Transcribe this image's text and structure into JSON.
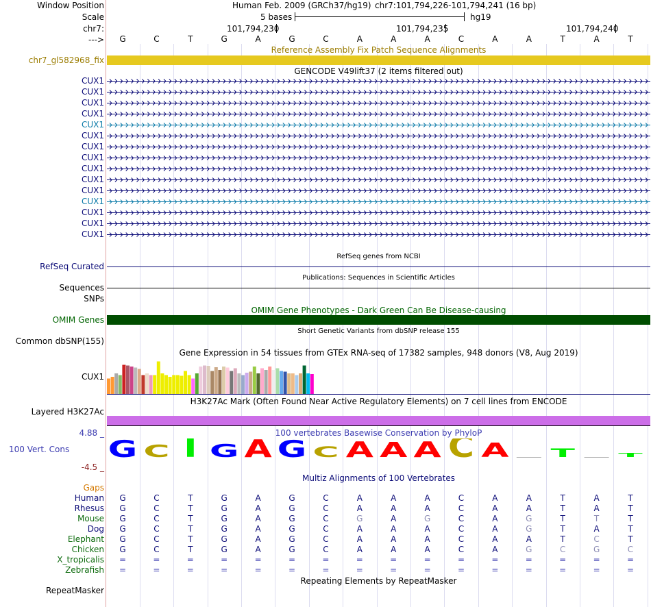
{
  "colors": {
    "blue_dark": "#0c0c78",
    "blue_teal": "#0b7aa8",
    "gold": "#e6c91f",
    "gold_label": "#9b7c00",
    "green_dark": "#004d00",
    "purple": "#cc6ee8",
    "conservation_title": "#3b3bb0",
    "conservation_label": "#3b3bb0",
    "negative_label": "#8b2020",
    "base_A": "#ff0000",
    "base_C": "#b8a200",
    "base_G": "#0000ff",
    "base_T": "#00ee00",
    "grid": "#dcdcf0",
    "red_gutter": "#e0a0a0"
  },
  "header": {
    "window_position_label": "Window Position",
    "assembly": "Human Feb. 2009 (GRCh37/hg19)",
    "position": "chr7:101,794,226-101,794,241 (16 bp)",
    "scale_label": "Scale",
    "scale_value": "5 bases",
    "scale_db": "hg19",
    "chrom_label": "chr7:",
    "coordinates": [
      "101,794,230",
      "101,794,235",
      "101,794,240"
    ],
    "strand_label": "--->",
    "bases": [
      "G",
      "C",
      "T",
      "G",
      "A",
      "G",
      "C",
      "A",
      "A",
      "A",
      "C",
      "A",
      "A",
      "T",
      "A",
      "T"
    ]
  },
  "fix_patch": {
    "title": "Reference Assembly Fix Patch Sequence Alignments",
    "label": "chr7_gl582968_fix"
  },
  "gencode": {
    "title": "GENCODE V49lift37 (2 items filtered out)",
    "rows": [
      {
        "label": "CUX1",
        "style": "dark"
      },
      {
        "label": "CUX1",
        "style": "dark"
      },
      {
        "label": "CUX1",
        "style": "dark"
      },
      {
        "label": "CUX1",
        "style": "dark"
      },
      {
        "label": "CUX1",
        "style": "teal"
      },
      {
        "label": "CUX1",
        "style": "dark"
      },
      {
        "label": "CUX1",
        "style": "dark"
      },
      {
        "label": "CUX1",
        "style": "dark"
      },
      {
        "label": "CUX1",
        "style": "dark"
      },
      {
        "label": "CUX1",
        "style": "dark"
      },
      {
        "label": "CUX1",
        "style": "dark"
      },
      {
        "label": "CUX1",
        "style": "teal"
      },
      {
        "label": "CUX1",
        "style": "dark"
      },
      {
        "label": "CUX1",
        "style": "dark"
      },
      {
        "label": "CUX1",
        "style": "dark"
      }
    ]
  },
  "refseq": {
    "title": "RefSeq genes from NCBI",
    "label": "RefSeq Curated"
  },
  "publications": {
    "title": "Publications: Sequences in Scientific Articles",
    "label_line1": "Sequences",
    "label_line2": "SNPs"
  },
  "omim": {
    "title": "OMIM Gene Phenotypes - Dark Green Can Be Disease-causing",
    "label": "OMIM Genes"
  },
  "dbsnp": {
    "title": "Short Genetic Variants from dbSNP release 155",
    "label": "Common dbSNP(155)"
  },
  "gtex": {
    "title": "Gene Expression in 54 tissues from GTEx RNA-seq of 17382 samples, 948 donors (V8, Aug 2019)",
    "label": "CUX1",
    "bars": [
      {
        "v": 0.45,
        "c": "#ff9933"
      },
      {
        "v": 0.5,
        "c": "#ff9933"
      },
      {
        "v": 0.6,
        "c": "#aaaaaa"
      },
      {
        "v": 0.55,
        "c": "#88bb66"
      },
      {
        "v": 0.85,
        "c": "#cc2222"
      },
      {
        "v": 0.83,
        "c": "#aa5566"
      },
      {
        "v": 0.8,
        "c": "#cc4488"
      },
      {
        "v": 0.77,
        "c": "#bbbbbb"
      },
      {
        "v": 0.73,
        "c": "#ddaa88"
      },
      {
        "v": 0.55,
        "c": "#c0392b"
      },
      {
        "v": 0.6,
        "c": "#eeddcc"
      },
      {
        "v": 0.55,
        "c": "#ee99bb"
      },
      {
        "v": 0.55,
        "c": "#eeee00"
      },
      {
        "v": 0.95,
        "c": "#eeee00"
      },
      {
        "v": 0.6,
        "c": "#eeee00"
      },
      {
        "v": 0.55,
        "c": "#eeee00"
      },
      {
        "v": 0.5,
        "c": "#eeee00"
      },
      {
        "v": 0.55,
        "c": "#eeee00"
      },
      {
        "v": 0.55,
        "c": "#eeee00"
      },
      {
        "v": 0.53,
        "c": "#eeee00"
      },
      {
        "v": 0.67,
        "c": "#eeee00"
      },
      {
        "v": 0.55,
        "c": "#eeee00"
      },
      {
        "v": 0.45,
        "c": "#ff66ff"
      },
      {
        "v": 0.6,
        "c": "#55aa33"
      },
      {
        "v": 0.8,
        "c": "#eeccdd"
      },
      {
        "v": 0.83,
        "c": "#ddbbcc"
      },
      {
        "v": 0.82,
        "c": "#ddccbb"
      },
      {
        "v": 0.67,
        "c": "#aa8866"
      },
      {
        "v": 0.78,
        "c": "#ccaa88"
      },
      {
        "v": 0.7,
        "c": "#997755"
      },
      {
        "v": 0.8,
        "c": "#ddccaa"
      },
      {
        "v": 0.77,
        "c": "#ffccdd"
      },
      {
        "v": 0.67,
        "c": "#777777"
      },
      {
        "v": 0.75,
        "c": "#ddaabb"
      },
      {
        "v": 0.6,
        "c": "#bbbbbb"
      },
      {
        "v": 0.55,
        "c": "#99aacc"
      },
      {
        "v": 0.62,
        "c": "#ccaaee"
      },
      {
        "v": 0.65,
        "c": "#ccaa88"
      },
      {
        "v": 0.8,
        "c": "#99cc44"
      },
      {
        "v": 0.6,
        "c": "#556b2f"
      },
      {
        "v": 0.75,
        "c": "#ffaacc"
      },
      {
        "v": 0.7,
        "c": "#aaaaaa"
      },
      {
        "v": 0.8,
        "c": "#ff9999"
      },
      {
        "v": 0.7,
        "c": "#eeeeee"
      },
      {
        "v": 0.75,
        "c": "#aaddaa"
      },
      {
        "v": 0.67,
        "c": "#66aaee"
      },
      {
        "v": 0.65,
        "c": "#3355aa"
      },
      {
        "v": 0.6,
        "c": "#ddbb88"
      },
      {
        "v": 0.6,
        "c": "#eebb88"
      },
      {
        "v": 0.55,
        "c": "#aaccee"
      },
      {
        "v": 0.6,
        "c": "#ddaa77"
      },
      {
        "v": 0.83,
        "c": "#006633"
      },
      {
        "v": 0.6,
        "c": "#00bbee"
      },
      {
        "v": 0.58,
        "c": "#ff00cc"
      }
    ]
  },
  "h3k27ac": {
    "title": "H3K27Ac Mark (Often Found Near Active Regulatory Elements) on 7 cell lines from ENCODE",
    "label": "Layered H3K27Ac"
  },
  "conservation": {
    "title": "100 vertebrates Basewise Conservation by PhyloP",
    "label": "100 Vert. Cons",
    "max_label": "4.88 _",
    "min_label": "-4.5 _",
    "ylim": [
      -4.5,
      4.88
    ],
    "scores": [
      2.6,
      1.9,
      3.6,
      2.0,
      2.7,
      2.6,
      1.6,
      2.4,
      2.3,
      2.4,
      3.3,
      2.2,
      0.0,
      1.3,
      0.0,
      0.6
    ]
  },
  "multiz": {
    "title": "Multiz Alignments of 100 Vertebrates",
    "gaps_label": "Gaps",
    "species": [
      {
        "name": "Human",
        "color": "#0c0c78",
        "bases": [
          "G",
          "C",
          "T",
          "G",
          "A",
          "G",
          "C",
          "A",
          "A",
          "A",
          "C",
          "A",
          "A",
          "T",
          "A",
          "T"
        ],
        "dim": []
      },
      {
        "name": "Rhesus",
        "color": "#0c0c78",
        "bases": [
          "G",
          "C",
          "T",
          "G",
          "A",
          "G",
          "C",
          "A",
          "A",
          "A",
          "C",
          "A",
          "A",
          "T",
          "A",
          "T"
        ],
        "dim": []
      },
      {
        "name": "Mouse",
        "color": "#0d6b0d",
        "bases": [
          "G",
          "C",
          "T",
          "G",
          "A",
          "G",
          "C",
          "G",
          "A",
          "G",
          "C",
          "A",
          "G",
          "T",
          "T",
          "T"
        ],
        "dim": [
          7,
          9,
          12,
          14
        ]
      },
      {
        "name": "Dog",
        "color": "#0c0c78",
        "bases": [
          "G",
          "C",
          "T",
          "G",
          "A",
          "G",
          "C",
          "A",
          "A",
          "A",
          "C",
          "A",
          "G",
          "T",
          "A",
          "T"
        ],
        "dim": [
          12
        ]
      },
      {
        "name": "Elephant",
        "color": "#0d6b0d",
        "bases": [
          "G",
          "C",
          "T",
          "G",
          "A",
          "G",
          "C",
          "A",
          "A",
          "A",
          "C",
          "A",
          "A",
          "T",
          "C",
          "T"
        ],
        "dim": [
          14
        ]
      },
      {
        "name": "Chicken",
        "color": "#0d6b0d",
        "bases": [
          "G",
          "C",
          "T",
          "G",
          "A",
          "G",
          "C",
          "A",
          "A",
          "A",
          "C",
          "A",
          "G",
          "C",
          "G",
          "C"
        ],
        "dim": [
          12,
          13,
          14,
          15
        ]
      },
      {
        "name": "X_tropicalis",
        "color": "#0d6b0d",
        "bases": [
          "=",
          "=",
          "=",
          "=",
          "=",
          "=",
          "=",
          "=",
          "=",
          "=",
          "=",
          "=",
          "=",
          "=",
          "=",
          "="
        ],
        "dim": []
      },
      {
        "name": "Zebrafish",
        "color": "#0d6b0d",
        "bases": [
          "=",
          "=",
          "=",
          "=",
          "=",
          "=",
          "=",
          "=",
          "=",
          "=",
          "=",
          "=",
          "=",
          "=",
          "=",
          "="
        ],
        "dim": []
      }
    ]
  },
  "repeatmasker": {
    "title": "Repeating Elements by RepeatMasker",
    "label": "RepeatMasker"
  }
}
